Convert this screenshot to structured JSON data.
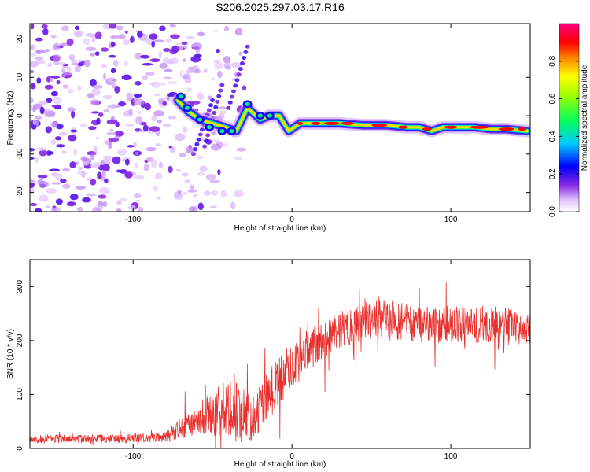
{
  "title": "S206.2025.297.03.17.R16",
  "chart_data": [
    {
      "type": "heatmap",
      "title": "S206.2025.297.03.17.R16",
      "xlabel": "Height of straight line (km)",
      "ylabel": "Frequency (Hz)",
      "xlim": [
        -165,
        150
      ],
      "ylim": [
        -25,
        24
      ],
      "xticks": [
        -100,
        0,
        100
      ],
      "xtick_labels": [
        "-100",
        "0",
        "100"
      ],
      "yticks": [
        20,
        10,
        0,
        -10,
        -20
      ],
      "ytick_labels": [
        "20",
        "10",
        "0",
        "-10",
        "-20"
      ],
      "grid": false,
      "colorbar": {
        "label": "Normalized spectral amplitude",
        "range": [
          0,
          1
        ],
        "ticks": [
          0.0,
          0.2,
          0.4,
          0.6,
          0.8
        ],
        "tick_labels": [
          "0.0",
          "0.2",
          "0.4",
          "0.6",
          "0.8"
        ],
        "colormap": "rainbow (purple→blue→cyan→green→yellow→red→magenta)"
      },
      "ridge": {
        "description": "Dominant frequency ridge (approx.)",
        "x": [
          -72,
          -65,
          -58,
          -50,
          -42,
          -35,
          -28,
          -20,
          -14,
          -8,
          -2,
          5,
          15,
          30,
          45,
          60,
          72,
          80,
          88,
          95,
          105,
          115,
          125,
          135,
          148
        ],
        "y": [
          4,
          1,
          -1,
          -2,
          -3,
          -4,
          2,
          -1,
          0,
          0,
          -4,
          -2,
          -2,
          -2,
          -2.5,
          -2.5,
          -3,
          -3,
          -4,
          -3,
          -3,
          -3,
          -3.5,
          -3.5,
          -4
        ]
      }
    },
    {
      "type": "line",
      "xlabel": "Height of straight line (km)",
      "ylabel": "SNR (10 * v/v)",
      "xlim": [
        -165,
        150
      ],
      "ylim": [
        0,
        350
      ],
      "xticks": [
        -100,
        0,
        100
      ],
      "xtick_labels": [
        "-100",
        "0",
        "100"
      ],
      "yticks": [
        0,
        100,
        200,
        300
      ],
      "ytick_labels": [
        "0",
        "100",
        "200",
        "300"
      ],
      "grid": false,
      "series": [
        {
          "name": "SNR",
          "color": "#e8312e",
          "envelope_x": [
            -165,
            -140,
            -110,
            -80,
            -65,
            -55,
            -45,
            -35,
            -25,
            -18,
            -10,
            0,
            10,
            20,
            30,
            40,
            50,
            60,
            80,
            100,
            120,
            140,
            150
          ],
          "envelope_mean": [
            18,
            18,
            18,
            20,
            45,
            60,
            70,
            70,
            55,
            90,
            120,
            150,
            180,
            200,
            220,
            230,
            240,
            240,
            230,
            230,
            230,
            225,
            220
          ],
          "envelope_spread": [
            8,
            8,
            8,
            10,
            25,
            35,
            50,
            60,
            45,
            50,
            45,
            40,
            40,
            35,
            35,
            35,
            35,
            35,
            35,
            35,
            35,
            35,
            30
          ]
        }
      ]
    }
  ]
}
